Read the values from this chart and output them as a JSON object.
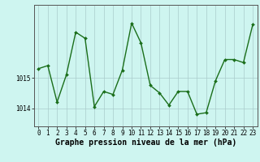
{
  "x": [
    0,
    1,
    2,
    3,
    4,
    5,
    6,
    7,
    8,
    9,
    10,
    11,
    12,
    13,
    14,
    15,
    16,
    17,
    18,
    19,
    20,
    21,
    22,
    23
  ],
  "y": [
    1015.3,
    1015.4,
    1014.2,
    1015.1,
    1016.5,
    1016.3,
    1014.05,
    1014.55,
    1014.45,
    1015.25,
    1016.8,
    1016.15,
    1014.75,
    1014.5,
    1014.1,
    1014.55,
    1014.55,
    1013.8,
    1013.85,
    1014.9,
    1015.6,
    1015.6,
    1015.5,
    1016.75
  ],
  "line_color": "#1a6e1a",
  "marker": "D",
  "marker_size": 2.0,
  "linewidth": 1.0,
  "bg_color": "#cef5f0",
  "grid_color": "#aacccc",
  "xlabel": "Graphe pression niveau de la mer (hPa)",
  "xlabel_fontsize": 7,
  "yticks": [
    1014,
    1015
  ],
  "ylim": [
    1013.4,
    1017.4
  ],
  "xlim": [
    -0.5,
    23.5
  ],
  "tick_fontsize": 5.5,
  "figsize": [
    3.2,
    2.0
  ],
  "dpi": 100
}
